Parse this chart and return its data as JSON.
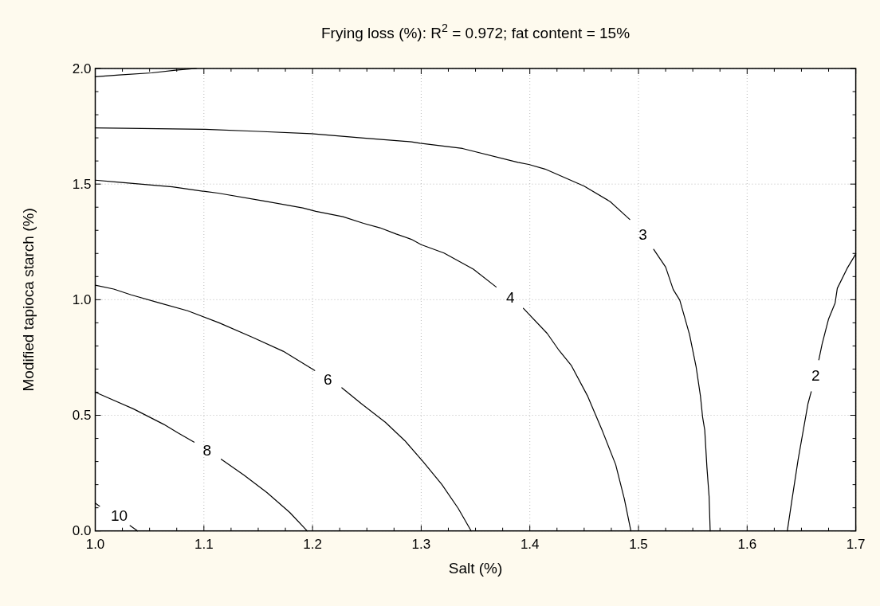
{
  "chart_data": {
    "type": "line",
    "title": "Frying loss (%): R$^{2}$ = 0.972; fat content = 15%",
    "xlabel": "Salt (%)",
    "ylabel": "Modified tapioca starch (%)",
    "xlim": [
      1.0,
      1.7
    ],
    "ylim": [
      0.0,
      2.0
    ],
    "xticks": [
      {
        "value": 1.0,
        "label": "1.0"
      },
      {
        "value": 1.025,
        "label": null
      },
      {
        "value": 1.05,
        "label": null
      },
      {
        "value": 1.075,
        "label": null
      },
      {
        "value": 1.1,
        "label": "1.1"
      },
      {
        "value": 1.125,
        "label": null
      },
      {
        "value": 1.15,
        "label": null
      },
      {
        "value": 1.175,
        "label": null
      },
      {
        "value": 1.2,
        "label": "1.2"
      },
      {
        "value": 1.225,
        "label": null
      },
      {
        "value": 1.25,
        "label": null
      },
      {
        "value": 1.275,
        "label": null
      },
      {
        "value": 1.3,
        "label": "1.3"
      },
      {
        "value": 1.325,
        "label": null
      },
      {
        "value": 1.35,
        "label": null
      },
      {
        "value": 1.375,
        "label": null
      },
      {
        "value": 1.4,
        "label": "1.4"
      },
      {
        "value": 1.425,
        "label": null
      },
      {
        "value": 1.45,
        "label": null
      },
      {
        "value": 1.475,
        "label": null
      },
      {
        "value": 1.5,
        "label": "1.5"
      },
      {
        "value": 1.525,
        "label": null
      },
      {
        "value": 1.55,
        "label": null
      },
      {
        "value": 1.575,
        "label": null
      },
      {
        "value": 1.6,
        "label": "1.6"
      },
      {
        "value": 1.625,
        "label": null
      },
      {
        "value": 1.65,
        "label": null
      },
      {
        "value": 1.675,
        "label": null
      },
      {
        "value": 1.7,
        "label": "1.7"
      }
    ],
    "yticks": [
      {
        "value": 0.0,
        "label": "0.0"
      },
      {
        "value": 0.1,
        "label": null
      },
      {
        "value": 0.2,
        "label": null
      },
      {
        "value": 0.3,
        "label": null
      },
      {
        "value": 0.4,
        "label": null
      },
      {
        "value": 0.5,
        "label": "0.5"
      },
      {
        "value": 0.6,
        "label": null
      },
      {
        "value": 0.7,
        "label": null
      },
      {
        "value": 0.8,
        "label": null
      },
      {
        "value": 0.9,
        "label": null
      },
      {
        "value": 1.0,
        "label": "1.0"
      },
      {
        "value": 1.1,
        "label": null
      },
      {
        "value": 1.2,
        "label": null
      },
      {
        "value": 1.3,
        "label": null
      },
      {
        "value": 1.4,
        "label": null
      },
      {
        "value": 1.5,
        "label": "1.5"
      },
      {
        "value": 1.6,
        "label": null
      },
      {
        "value": 1.7,
        "label": null
      },
      {
        "value": 1.8,
        "label": null
      },
      {
        "value": 1.9,
        "label": null
      },
      {
        "value": 2.0,
        "label": "2.0"
      }
    ],
    "grid": true,
    "series": [
      {
        "name": "10",
        "color": "#000000",
        "x": [
          1.0,
          1.004,
          1.022,
          1.032,
          1.039
        ],
        "values": [
          0.12,
          0.107,
          null,
          0.023,
          0.0
        ]
      },
      {
        "name": "8",
        "color": "#000000",
        "x": [
          1.0,
          1.035,
          1.063,
          1.076,
          1.091,
          1.103,
          1.116,
          1.137,
          1.158,
          1.179,
          1.195
        ],
        "values": [
          0.6,
          0.528,
          0.461,
          0.424,
          0.384,
          null,
          0.31,
          0.241,
          0.166,
          0.08,
          0.0
        ]
      },
      {
        "name": "6",
        "color": "#000000",
        "x": [
          1.0,
          1.017,
          1.033,
          1.059,
          1.085,
          1.114,
          1.145,
          1.173,
          1.202,
          1.214,
          1.227,
          1.245,
          1.267,
          1.285,
          1.302,
          1.319,
          1.334,
          1.346
        ],
        "values": [
          1.063,
          1.046,
          1.021,
          0.986,
          0.952,
          0.9,
          0.837,
          0.777,
          0.694,
          null,
          0.619,
          0.55,
          0.47,
          0.39,
          0.298,
          0.201,
          0.098,
          0.0
        ]
      },
      {
        "name": "4",
        "color": "#000000",
        "x": [
          1.0,
          1.022,
          1.071,
          1.101,
          1.113,
          1.154,
          1.191,
          1.203,
          1.228,
          1.247,
          1.262,
          1.277,
          1.291,
          1.3,
          1.321,
          1.338,
          1.348,
          1.369,
          1.382,
          1.394,
          1.416,
          1.427,
          1.438,
          1.453,
          1.467,
          1.479,
          1.487,
          1.493
        ],
        "values": [
          1.517,
          1.508,
          1.488,
          1.468,
          1.461,
          1.428,
          1.397,
          1.382,
          1.359,
          1.33,
          1.311,
          1.284,
          1.261,
          1.238,
          1.202,
          1.158,
          1.132,
          1.055,
          null,
          0.963,
          0.854,
          0.78,
          0.717,
          0.585,
          0.43,
          0.287,
          0.138,
          0.0
        ]
      },
      {
        "name": "3",
        "color": "#000000",
        "x": [
          1.0,
          1.101,
          1.15,
          1.199,
          1.247,
          1.291,
          1.299,
          1.338,
          1.389,
          1.399,
          1.414,
          1.45,
          1.474,
          1.492,
          1.504,
          1.514,
          1.525,
          1.532,
          1.538,
          1.547,
          1.553,
          1.557,
          1.559,
          1.561,
          1.563,
          1.565,
          1.566
        ],
        "values": [
          1.743,
          1.737,
          1.728,
          1.718,
          1.699,
          1.683,
          1.677,
          1.654,
          1.594,
          1.585,
          1.565,
          1.491,
          1.424,
          1.347,
          null,
          1.218,
          1.141,
          1.044,
          0.998,
          0.849,
          0.711,
          0.585,
          0.493,
          0.436,
          0.275,
          0.149,
          0.0
        ]
      },
      {
        "name": "2",
        "color": "#000000",
        "x": [
          1.637,
          1.641,
          1.647,
          1.656,
          1.659,
          1.663,
          1.666,
          1.669,
          1.675,
          1.681,
          1.683,
          1.692,
          1.7
        ],
        "values": [
          0.0,
          0.126,
          0.31,
          0.55,
          0.602,
          null,
          0.74,
          0.808,
          0.917,
          0.986,
          1.049,
          1.135,
          1.198
        ]
      },
      {
        "color": "#000000",
        "x": [
          1.0,
          1.022,
          1.052,
          1.074,
          1.093
        ],
        "values": [
          1.964,
          1.972,
          1.981,
          1.993,
          2.0
        ]
      }
    ]
  }
}
